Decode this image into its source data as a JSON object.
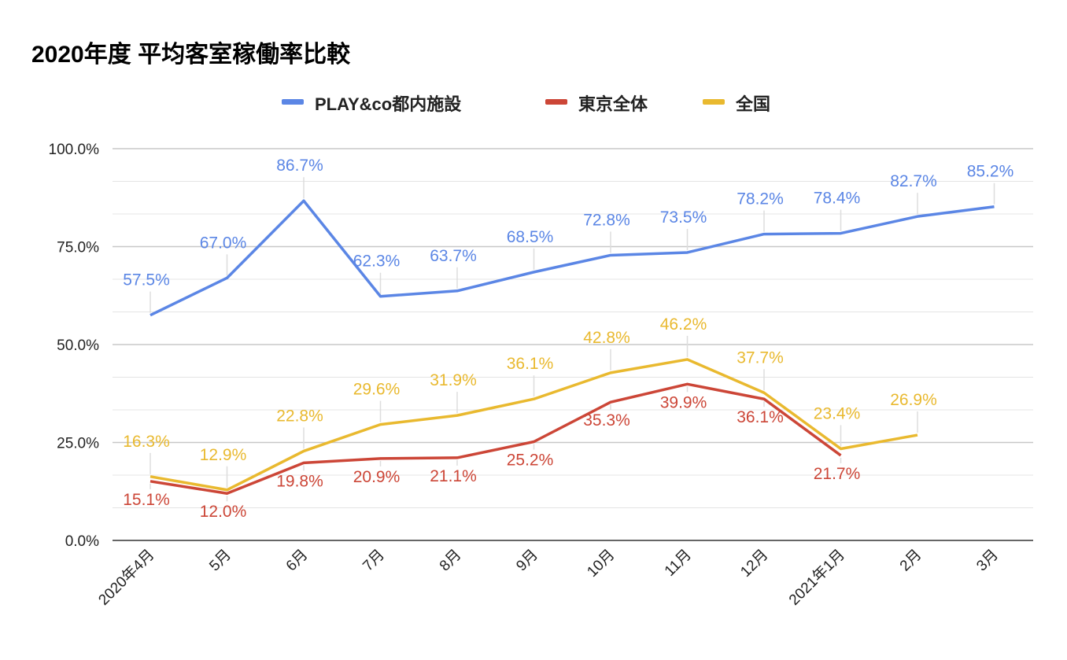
{
  "chart_data": {
    "type": "line",
    "title": "2020年度 平均客室稼働率比較",
    "categories": [
      "2020年4月",
      "5月",
      "6月",
      "7月",
      "8月",
      "9月",
      "10月",
      "11月",
      "12月",
      "2021年1月",
      "2月",
      "3月"
    ],
    "ylim": [
      0,
      100
    ],
    "yticks": [
      "0.0%",
      "25.0%",
      "50.0%",
      "75.0%",
      "100.0%"
    ],
    "grid": true,
    "legend": "top",
    "series": [
      {
        "name": "PLAY&co都内施設",
        "color": "#5b86e5",
        "values": [
          57.5,
          67.0,
          86.7,
          62.3,
          63.7,
          68.5,
          72.8,
          73.5,
          78.2,
          78.4,
          82.7,
          85.2
        ]
      },
      {
        "name": "東京全体",
        "color": "#cc4637",
        "values": [
          15.1,
          12.0,
          19.8,
          20.9,
          21.1,
          25.2,
          35.3,
          39.9,
          36.1,
          21.7,
          null,
          null
        ]
      },
      {
        "name": "全国",
        "color": "#e9b92f",
        "values": [
          16.3,
          12.9,
          22.8,
          29.6,
          31.9,
          36.1,
          42.8,
          46.2,
          37.7,
          23.4,
          26.9,
          null
        ]
      }
    ]
  }
}
